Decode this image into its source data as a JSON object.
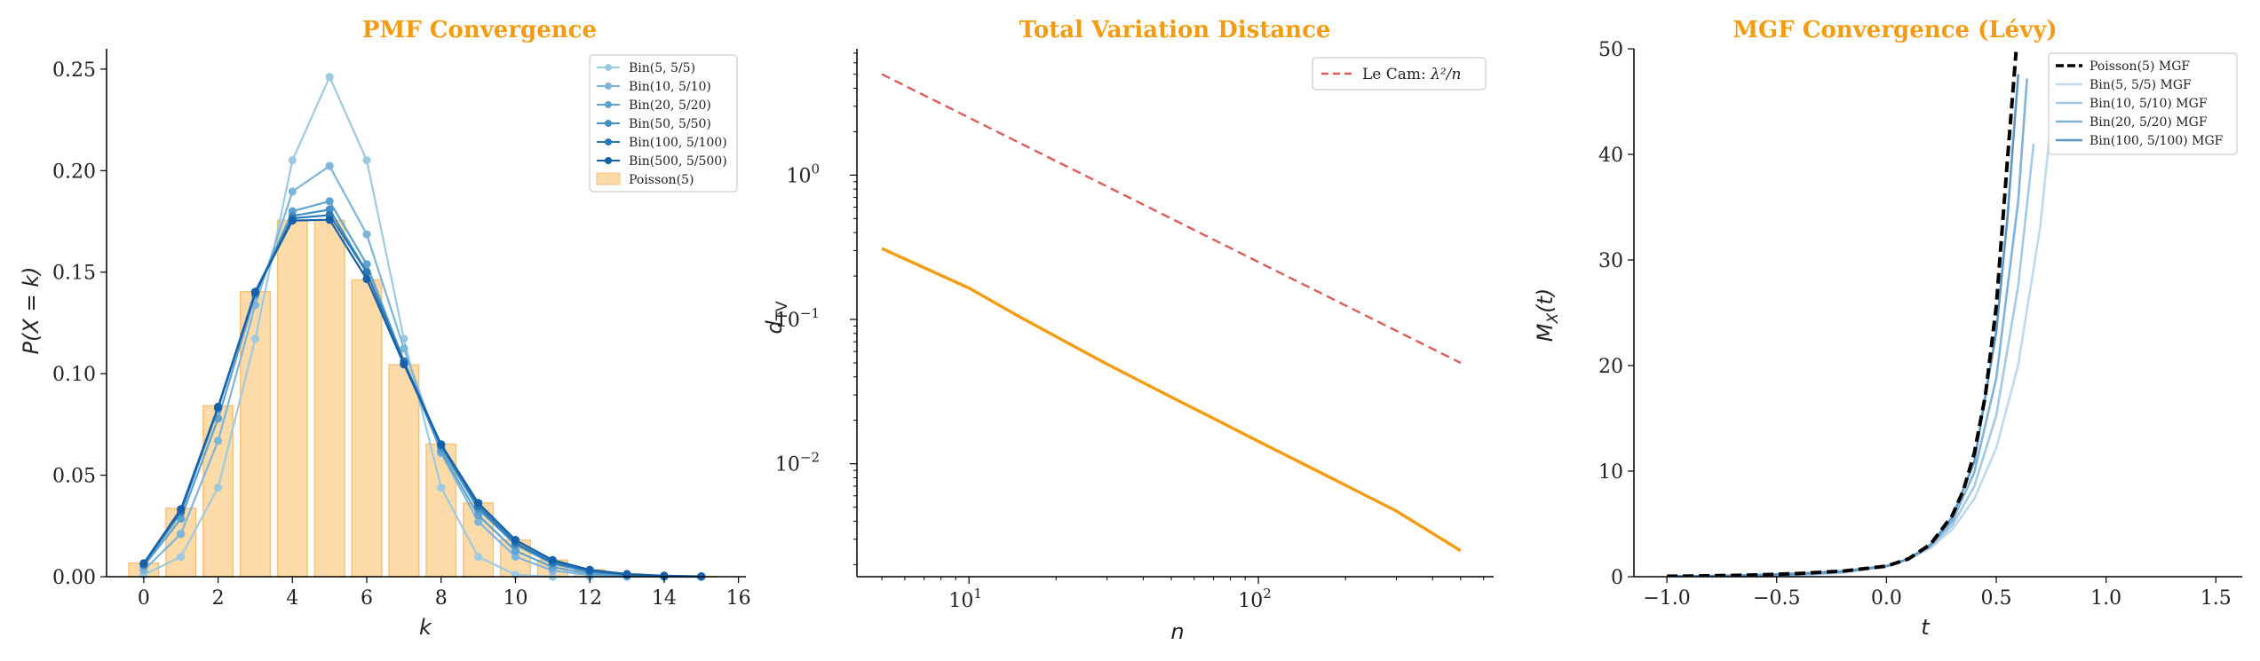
{
  "colors": {
    "title": "#f39c12",
    "poisson_bar": "#fddba8",
    "poisson_bar_edge": "#f6c37a",
    "bin_series": [
      "#9ecae1",
      "#7fb5d9",
      "#5fa2d0",
      "#4290c4",
      "#2b78b4",
      "#1560a8"
    ],
    "tv_line": "#f39c12",
    "lecam_line": "#e05a5a",
    "mgf_poisson": "#000000",
    "mgf_series": [
      "#c0daec",
      "#a3c9e4",
      "#7fb3d9",
      "#5b95c4"
    ]
  },
  "chart_data": [
    {
      "type": "bar+line",
      "title": "PMF Convergence",
      "xlabel": "k",
      "ylabel": "P(X = k)",
      "xlim": [
        -1,
        16.2
      ],
      "ylim": [
        0,
        0.26
      ],
      "xticks": [
        "0",
        "2",
        "4",
        "6",
        "8",
        "10",
        "12",
        "14",
        "16"
      ],
      "yticks": [
        "0.00",
        "0.05",
        "0.10",
        "0.15",
        "0.20",
        "0.25"
      ],
      "legend_position": "top-right",
      "bars": {
        "name": "Poisson(5)",
        "x": [
          0,
          1,
          2,
          3,
          4,
          5,
          6,
          7,
          8,
          9,
          10,
          11,
          12,
          13,
          14,
          15
        ],
        "values": [
          0.0067,
          0.0337,
          0.0842,
          0.1404,
          0.1755,
          0.1755,
          0.1462,
          0.1044,
          0.0653,
          0.0363,
          0.0181,
          0.0082,
          0.0034,
          0.0013,
          0.0005,
          0.0002
        ]
      },
      "series": [
        {
          "name": "Bin(5, 5/5)",
          "x": [
            0,
            1,
            2,
            3,
            4,
            5,
            6,
            7,
            8,
            9,
            10,
            11,
            12,
            13,
            14,
            15
          ],
          "values": [
            0.001,
            0.0098,
            0.0439,
            0.1172,
            0.2051,
            0.2461,
            0.2051,
            0.1172,
            0.0439,
            0.0098,
            0.001,
            0,
            0,
            0,
            0,
            0
          ]
        },
        {
          "name": "Bin(10, 5/10)",
          "x": [
            0,
            1,
            2,
            3,
            4,
            5,
            6,
            7,
            8,
            9,
            10,
            11,
            12,
            13,
            14,
            15
          ],
          "values": [
            0.0032,
            0.0211,
            0.0669,
            0.1339,
            0.1897,
            0.2023,
            0.1686,
            0.1124,
            0.0609,
            0.0271,
            0.0099,
            0.003,
            0.0008,
            0.0002,
            0,
            0
          ]
        },
        {
          "name": "Bin(20, 5/20)",
          "x": [
            0,
            1,
            2,
            3,
            4,
            5,
            6,
            7,
            8,
            9,
            10,
            11,
            12,
            13,
            14,
            15
          ],
          "values": [
            0.0052,
            0.0286,
            0.0779,
            0.1385,
            0.18,
            0.1849,
            0.1539,
            0.1062,
            0.0617,
            0.0303,
            0.0128,
            0.0047,
            0.0015,
            0.0004,
            0.0001,
            0
          ]
        },
        {
          "name": "Bin(50, 5/50)",
          "x": [
            0,
            1,
            2,
            3,
            4,
            5,
            6,
            7,
            8,
            9,
            10,
            11,
            12,
            13,
            14,
            15
          ],
          "values": [
            0.0059,
            0.0316,
            0.0827,
            0.1404,
            0.1777,
            0.1808,
            0.15,
            0.105,
            0.0637,
            0.0334,
            0.0158,
            0.0064,
            0.0024,
            0.0008,
            0.0002,
            0.0001
          ]
        },
        {
          "name": "Bin(100, 5/100)",
          "x": [
            0,
            1,
            2,
            3,
            4,
            5,
            6,
            7,
            8,
            9,
            10,
            11,
            12,
            13,
            14,
            15
          ],
          "values": [
            0.0062,
            0.0324,
            0.0834,
            0.1396,
            0.1765,
            0.1781,
            0.15,
            0.106,
            0.0649,
            0.0349,
            0.0167,
            0.0072,
            0.0028,
            0.001,
            0.0003,
            0.0001
          ]
        },
        {
          "name": "Bin(500, 5/500)",
          "x": [
            0,
            1,
            2,
            3,
            4,
            5,
            6,
            7,
            8,
            9,
            10,
            11,
            12,
            13,
            14,
            15
          ],
          "values": [
            0.0066,
            0.0333,
            0.0837,
            0.1402,
            0.1754,
            0.1758,
            0.1466,
            0.1046,
            0.0652,
            0.0363,
            0.0181,
            0.0082,
            0.0034,
            0.0013,
            0.0005,
            0.0002
          ]
        }
      ]
    },
    {
      "type": "line",
      "title": "Total Variation Distance",
      "xlabel": "n",
      "ylabel": "d_TV",
      "xscale": "log",
      "yscale": "log",
      "xlim": [
        4.1,
        650
      ],
      "ylim": [
        0.00165,
        7.5
      ],
      "xticks": [
        {
          "value": 10,
          "base": "10",
          "exp": "1"
        },
        {
          "value": 100,
          "base": "10",
          "exp": "2"
        }
      ],
      "yticks": [
        {
          "value": 1,
          "base": "10",
          "exp": "0"
        },
        {
          "value": 0.1,
          "base": "10",
          "exp": "−1"
        },
        {
          "value": 0.01,
          "base": "10",
          "exp": "−2"
        }
      ],
      "legend_position": "top-right",
      "series": [
        {
          "name": "",
          "x": [
            5,
            10,
            15,
            20,
            30,
            50,
            75,
            100,
            150,
            200,
            300,
            500
          ],
          "values": [
            0.31,
            0.165,
            0.104,
            0.076,
            0.049,
            0.029,
            0.0192,
            0.0143,
            0.0095,
            0.0071,
            0.0047,
            0.0025
          ]
        },
        {
          "name": "Le Cam: λ²/n",
          "legend_label": "Le Cam: ",
          "legend_math": "λ²/n",
          "dashed": true,
          "x": [
            5,
            10,
            20,
            50,
            100,
            200,
            500
          ],
          "values": [
            5.0,
            2.5,
            1.25,
            0.5,
            0.25,
            0.125,
            0.05
          ]
        }
      ]
    },
    {
      "type": "line",
      "title": "MGF Convergence (Lévy)",
      "xlabel": "t",
      "ylabel": "M_X(t)",
      "xlim": [
        -1.15,
        1.62
      ],
      "ylim": [
        0,
        50
      ],
      "xticks": [
        "−1.0",
        "−0.5",
        "0.0",
        "0.5",
        "1.0",
        "1.5"
      ],
      "xtick_values": [
        -1.0,
        -0.5,
        0.0,
        0.5,
        1.0,
        1.5
      ],
      "yticks": [
        "0",
        "10",
        "20",
        "30",
        "40",
        "50"
      ],
      "ytick_values": [
        0,
        10,
        20,
        30,
        40,
        50
      ],
      "legend_position": "top-right",
      "series": [
        {
          "name": "Poisson(5) MGF",
          "dashed": true,
          "x": [
            -1.0,
            -0.8,
            -0.6,
            -0.4,
            -0.2,
            0.0,
            0.1,
            0.2,
            0.3,
            0.35,
            0.4,
            0.45,
            0.5,
            0.55,
            0.59
          ],
          "values": [
            0.042,
            0.084,
            0.164,
            0.306,
            0.531,
            1.0,
            1.69,
            3.06,
            5.81,
            8.17,
            11.71,
            17.12,
            25.62,
            39.27,
            49.7
          ]
        },
        {
          "name": "Bin(5, 5/5) MGF",
          "x": [
            -1.0,
            -0.8,
            -0.6,
            -0.4,
            -0.2,
            0.0,
            0.1,
            0.2,
            0.3,
            0.4,
            0.5,
            0.6,
            0.7,
            0.78
          ],
          "values": [
            0.0067,
            0.0183,
            0.0498,
            0.1353,
            0.3679,
            1.0,
            1.65,
            2.72,
            4.48,
            7.39,
            12.18,
            20.09,
            33.12,
            49.4
          ]
        },
        {
          "name": "Bin(10, 5/10) MGF",
          "x": [
            -1.0,
            -0.8,
            -0.6,
            -0.4,
            -0.2,
            0.0,
            0.1,
            0.2,
            0.3,
            0.4,
            0.5,
            0.6,
            0.67
          ],
          "values": [
            0.0183,
            0.0378,
            0.0798,
            0.171,
            0.4144,
            1.0,
            1.65,
            2.81,
            4.88,
            8.56,
            15.28,
            27.58,
            41.0
          ]
        },
        {
          "name": "Bin(20, 5/20) MGF",
          "x": [
            -1.0,
            -0.8,
            -0.6,
            -0.4,
            -0.2,
            0.0,
            0.1,
            0.2,
            0.3,
            0.4,
            0.5,
            0.6,
            0.64
          ],
          "values": [
            0.0285,
            0.0566,
            0.114,
            0.236,
            0.47,
            1.0,
            1.67,
            2.93,
            5.26,
            9.9,
            18.8,
            35.6,
            47.2
          ]
        },
        {
          "name": "Bin(100, 5/100) MGF",
          "x": [
            -1.0,
            -0.8,
            -0.6,
            -0.4,
            -0.2,
            0.0,
            0.1,
            0.2,
            0.3,
            0.4,
            0.5,
            0.55,
            0.6
          ],
          "values": [
            0.038,
            0.077,
            0.153,
            0.299,
            0.52,
            1.0,
            1.69,
            3.03,
            5.66,
            10.9,
            23.2,
            33.8,
            47.6
          ]
        }
      ]
    }
  ]
}
